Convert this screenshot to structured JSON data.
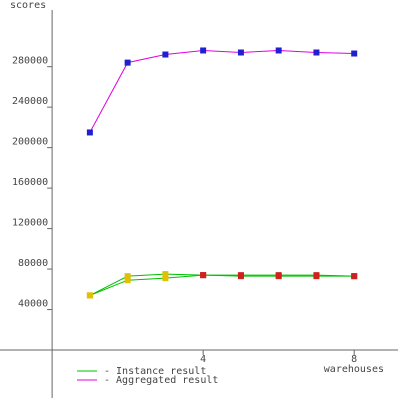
{
  "chart_data": {
    "type": "line",
    "y_axis_label": "scores",
    "x_axis_label": "warehouses",
    "xlim": [
      -1.38,
      9.16
    ],
    "ylim": [
      -47400,
      336000
    ],
    "xticks": [
      4,
      8
    ],
    "yticks": [
      40000,
      80000,
      120000,
      160000,
      200000,
      240000,
      280000
    ],
    "x": [
      1,
      2,
      3,
      4,
      5,
      6,
      7,
      8
    ],
    "series": [
      {
        "name": "- Instance result",
        "color": "#00c000",
        "marker_colors": [
          "#e0c000",
          "#e0c000",
          "#e0c000",
          "#d02020",
          "#d02020",
          "#d02020",
          "#d02020",
          "#d02020"
        ],
        "values": [
          54000,
          73000,
          75000,
          74000,
          74000,
          74000,
          74000,
          73000
        ]
      },
      {
        "name": "- Instance result",
        "color": "#00c000",
        "marker_colors": [
          "#e0c000",
          "#e0c000",
          "#e0c000",
          "#d02020",
          "#d02020",
          "#d02020",
          "#d02020",
          "#d02020"
        ],
        "values": [
          54000,
          69000,
          71000,
          74000,
          73000,
          73000,
          73000,
          73000
        ]
      },
      {
        "name": "- Aggregated result",
        "color": "#e000e0",
        "marker_color": "#2020d0",
        "values": [
          215000,
          284000,
          292000,
          296000,
          294000,
          296000,
          294000,
          293000
        ]
      }
    ]
  }
}
